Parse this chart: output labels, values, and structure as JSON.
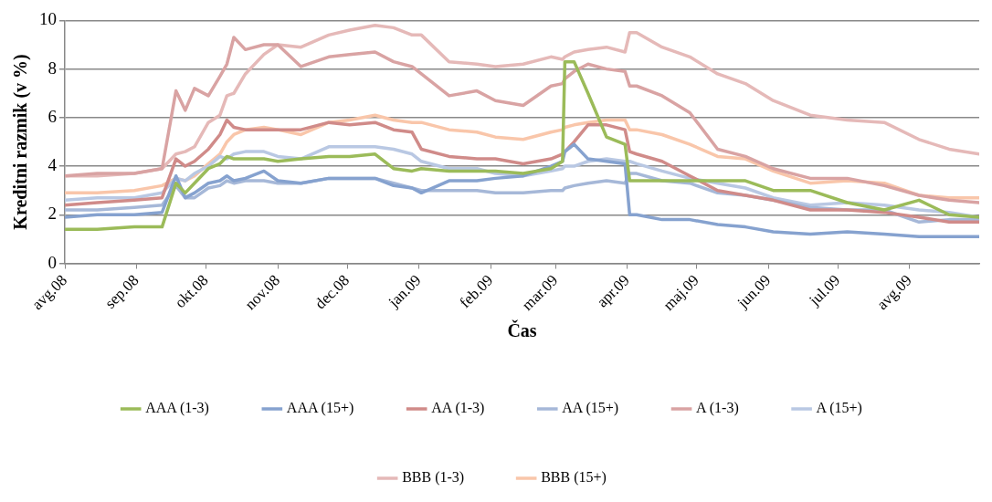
{
  "chart_data": {
    "type": "line",
    "xlabel": "Čas",
    "ylabel": "Kreditni razmik (v %)",
    "x": [
      "2008-08-01",
      "2008-08-15",
      "2008-08-31",
      "2008-09-12",
      "2008-09-18",
      "2008-09-22",
      "2008-09-26",
      "2008-10-02",
      "2008-10-07",
      "2008-10-10",
      "2008-10-13",
      "2008-10-18",
      "2008-10-26",
      "2008-11-01",
      "2008-11-11",
      "2008-11-23",
      "2008-12-02",
      "2008-12-13",
      "2008-12-21",
      "2008-12-29",
      "2009-01-02",
      "2009-01-14",
      "2009-01-26",
      "2009-02-03",
      "2009-02-15",
      "2009-02-27",
      "2009-03-04",
      "2009-03-05",
      "2009-03-09",
      "2009-03-15",
      "2009-03-23",
      "2009-03-31",
      "2009-04-02",
      "2009-04-05",
      "2009-04-16",
      "2009-04-28",
      "2009-05-10",
      "2009-05-22",
      "2009-06-03",
      "2009-06-19",
      "2009-07-05",
      "2009-07-21",
      "2009-08-05",
      "2009-08-18",
      "2009-08-31"
    ],
    "series": [
      {
        "name": "AAA (1-3)",
        "color": "#9bbb59",
        "values": [
          1.4,
          1.4,
          1.5,
          1.5,
          3.3,
          2.9,
          3.3,
          3.9,
          4.1,
          4.4,
          4.3,
          4.3,
          4.3,
          4.2,
          4.3,
          4.4,
          4.4,
          4.5,
          3.9,
          3.8,
          3.9,
          3.8,
          3.8,
          3.8,
          3.7,
          3.9,
          4.2,
          8.3,
          8.3,
          7.0,
          5.2,
          4.9,
          3.4,
          3.4,
          3.4,
          3.4,
          3.4,
          3.4,
          3.0,
          3.0,
          2.5,
          2.2,
          2.6,
          2.0,
          1.9
        ]
      },
      {
        "name": "AAA (15+)",
        "color": "#86a2cf",
        "values": [
          1.9,
          2.0,
          2.0,
          2.1,
          3.6,
          2.7,
          2.9,
          3.3,
          3.4,
          3.6,
          3.4,
          3.5,
          3.8,
          3.4,
          3.3,
          3.5,
          3.5,
          3.5,
          3.2,
          3.1,
          2.9,
          3.4,
          3.4,
          3.5,
          3.6,
          4.0,
          4.2,
          4.6,
          4.9,
          4.3,
          4.2,
          4.1,
          2.0,
          2.0,
          1.8,
          1.8,
          1.6,
          1.5,
          1.3,
          1.2,
          1.3,
          1.2,
          1.1,
          1.1,
          1.1
        ]
      },
      {
        "name": "AA (1-3)",
        "color": "#d08b89",
        "values": [
          2.4,
          2.5,
          2.6,
          2.7,
          4.3,
          4.0,
          4.2,
          4.7,
          5.3,
          5.9,
          5.6,
          5.5,
          5.5,
          5.5,
          5.5,
          5.8,
          5.7,
          5.8,
          5.5,
          5.4,
          4.7,
          4.4,
          4.3,
          4.3,
          4.1,
          4.3,
          4.5,
          4.6,
          5.0,
          5.7,
          5.7,
          5.5,
          4.6,
          4.5,
          4.2,
          3.6,
          3.0,
          2.8,
          2.6,
          2.2,
          2.2,
          2.1,
          1.9,
          1.7,
          1.7
        ]
      },
      {
        "name": "AA (15+)",
        "color": "#a6b8d8",
        "values": [
          2.2,
          2.2,
          2.3,
          2.4,
          3.2,
          2.7,
          2.7,
          3.1,
          3.2,
          3.4,
          3.3,
          3.4,
          3.4,
          3.3,
          3.3,
          3.5,
          3.5,
          3.5,
          3.3,
          3.1,
          3.0,
          3.0,
          3.0,
          2.9,
          2.9,
          3.0,
          3.0,
          3.1,
          3.2,
          3.3,
          3.4,
          3.3,
          3.7,
          3.7,
          3.4,
          3.3,
          2.9,
          2.8,
          2.6,
          2.3,
          2.2,
          2.2,
          1.7,
          1.8,
          1.8
        ]
      },
      {
        "name": "A (1-3)",
        "color": "#d9a3a3",
        "values": [
          3.6,
          3.7,
          3.7,
          3.9,
          7.1,
          6.3,
          7.2,
          6.9,
          7.7,
          8.2,
          9.3,
          8.8,
          9.0,
          9.0,
          8.1,
          8.5,
          8.6,
          8.7,
          8.3,
          8.1,
          7.8,
          6.9,
          7.1,
          6.7,
          6.5,
          7.3,
          7.4,
          7.6,
          7.9,
          8.2,
          8.0,
          7.9,
          7.3,
          7.3,
          6.9,
          6.2,
          4.7,
          4.4,
          3.9,
          3.5,
          3.5,
          3.2,
          2.8,
          2.6,
          2.5
        ]
      },
      {
        "name": "A (15+)",
        "color": "#b9c8e3",
        "values": [
          2.6,
          2.7,
          2.7,
          2.9,
          3.5,
          3.4,
          3.7,
          4.0,
          4.4,
          4.3,
          4.5,
          4.6,
          4.6,
          4.4,
          4.3,
          4.8,
          4.8,
          4.8,
          4.7,
          4.5,
          4.2,
          3.9,
          3.9,
          3.7,
          3.6,
          3.8,
          3.9,
          4.0,
          4.0,
          4.2,
          4.3,
          4.2,
          4.2,
          4.1,
          3.8,
          3.5,
          3.3,
          3.1,
          2.7,
          2.4,
          2.5,
          2.4,
          2.2,
          2.1,
          1.9
        ]
      },
      {
        "name": "BBB (1-3)",
        "color": "#e5b9b8",
        "values": [
          3.6,
          3.6,
          3.7,
          3.9,
          4.5,
          4.6,
          4.8,
          5.8,
          6.1,
          6.9,
          7.0,
          7.8,
          8.6,
          9.0,
          8.9,
          9.4,
          9.6,
          9.8,
          9.7,
          9.4,
          9.4,
          8.3,
          8.2,
          8.1,
          8.2,
          8.5,
          8.4,
          8.5,
          8.7,
          8.8,
          8.9,
          8.7,
          9.5,
          9.5,
          8.9,
          8.5,
          7.8,
          7.4,
          6.7,
          6.1,
          5.9,
          5.8,
          5.1,
          4.7,
          4.5
        ]
      },
      {
        "name": "BBB (15+)",
        "color": "#f9c6aa",
        "values": [
          2.9,
          2.9,
          3.0,
          3.2,
          3.5,
          3.4,
          3.6,
          4.1,
          4.5,
          5.0,
          5.3,
          5.5,
          5.6,
          5.5,
          5.3,
          5.8,
          5.9,
          6.1,
          5.9,
          5.8,
          5.8,
          5.5,
          5.4,
          5.2,
          5.1,
          5.4,
          5.5,
          5.6,
          5.7,
          5.8,
          5.9,
          5.9,
          5.5,
          5.5,
          5.3,
          4.9,
          4.4,
          4.3,
          3.8,
          3.3,
          3.4,
          3.3,
          2.8,
          2.7,
          2.7
        ]
      }
    ],
    "xlim": [
      "2008-08-01",
      "2009-08-31"
    ],
    "xticks": [
      {
        "value": "2008-08-01",
        "label": "avg.08"
      },
      {
        "value": "2008-09-01",
        "label": "sep.08"
      },
      {
        "value": "2008-10-01",
        "label": "okt.08"
      },
      {
        "value": "2008-11-01",
        "label": "nov.08"
      },
      {
        "value": "2008-12-01",
        "label": "dec.08"
      },
      {
        "value": "2009-01-01",
        "label": "jan.09"
      },
      {
        "value": "2009-02-01",
        "label": "feb.09"
      },
      {
        "value": "2009-03-01",
        "label": "mar.09"
      },
      {
        "value": "2009-04-01",
        "label": "apr.09"
      },
      {
        "value": "2009-05-01",
        "label": "maj.09"
      },
      {
        "value": "2009-06-01",
        "label": "jun.09"
      },
      {
        "value": "2009-07-01",
        "label": "jul.09"
      },
      {
        "value": "2009-08-01",
        "label": "avg.09"
      }
    ],
    "ylim": [
      0,
      10
    ],
    "yticks": [
      0,
      2,
      4,
      6,
      8,
      10
    ],
    "grid": "y",
    "legend": "bottom",
    "marker": "none",
    "line_style": "solid"
  }
}
